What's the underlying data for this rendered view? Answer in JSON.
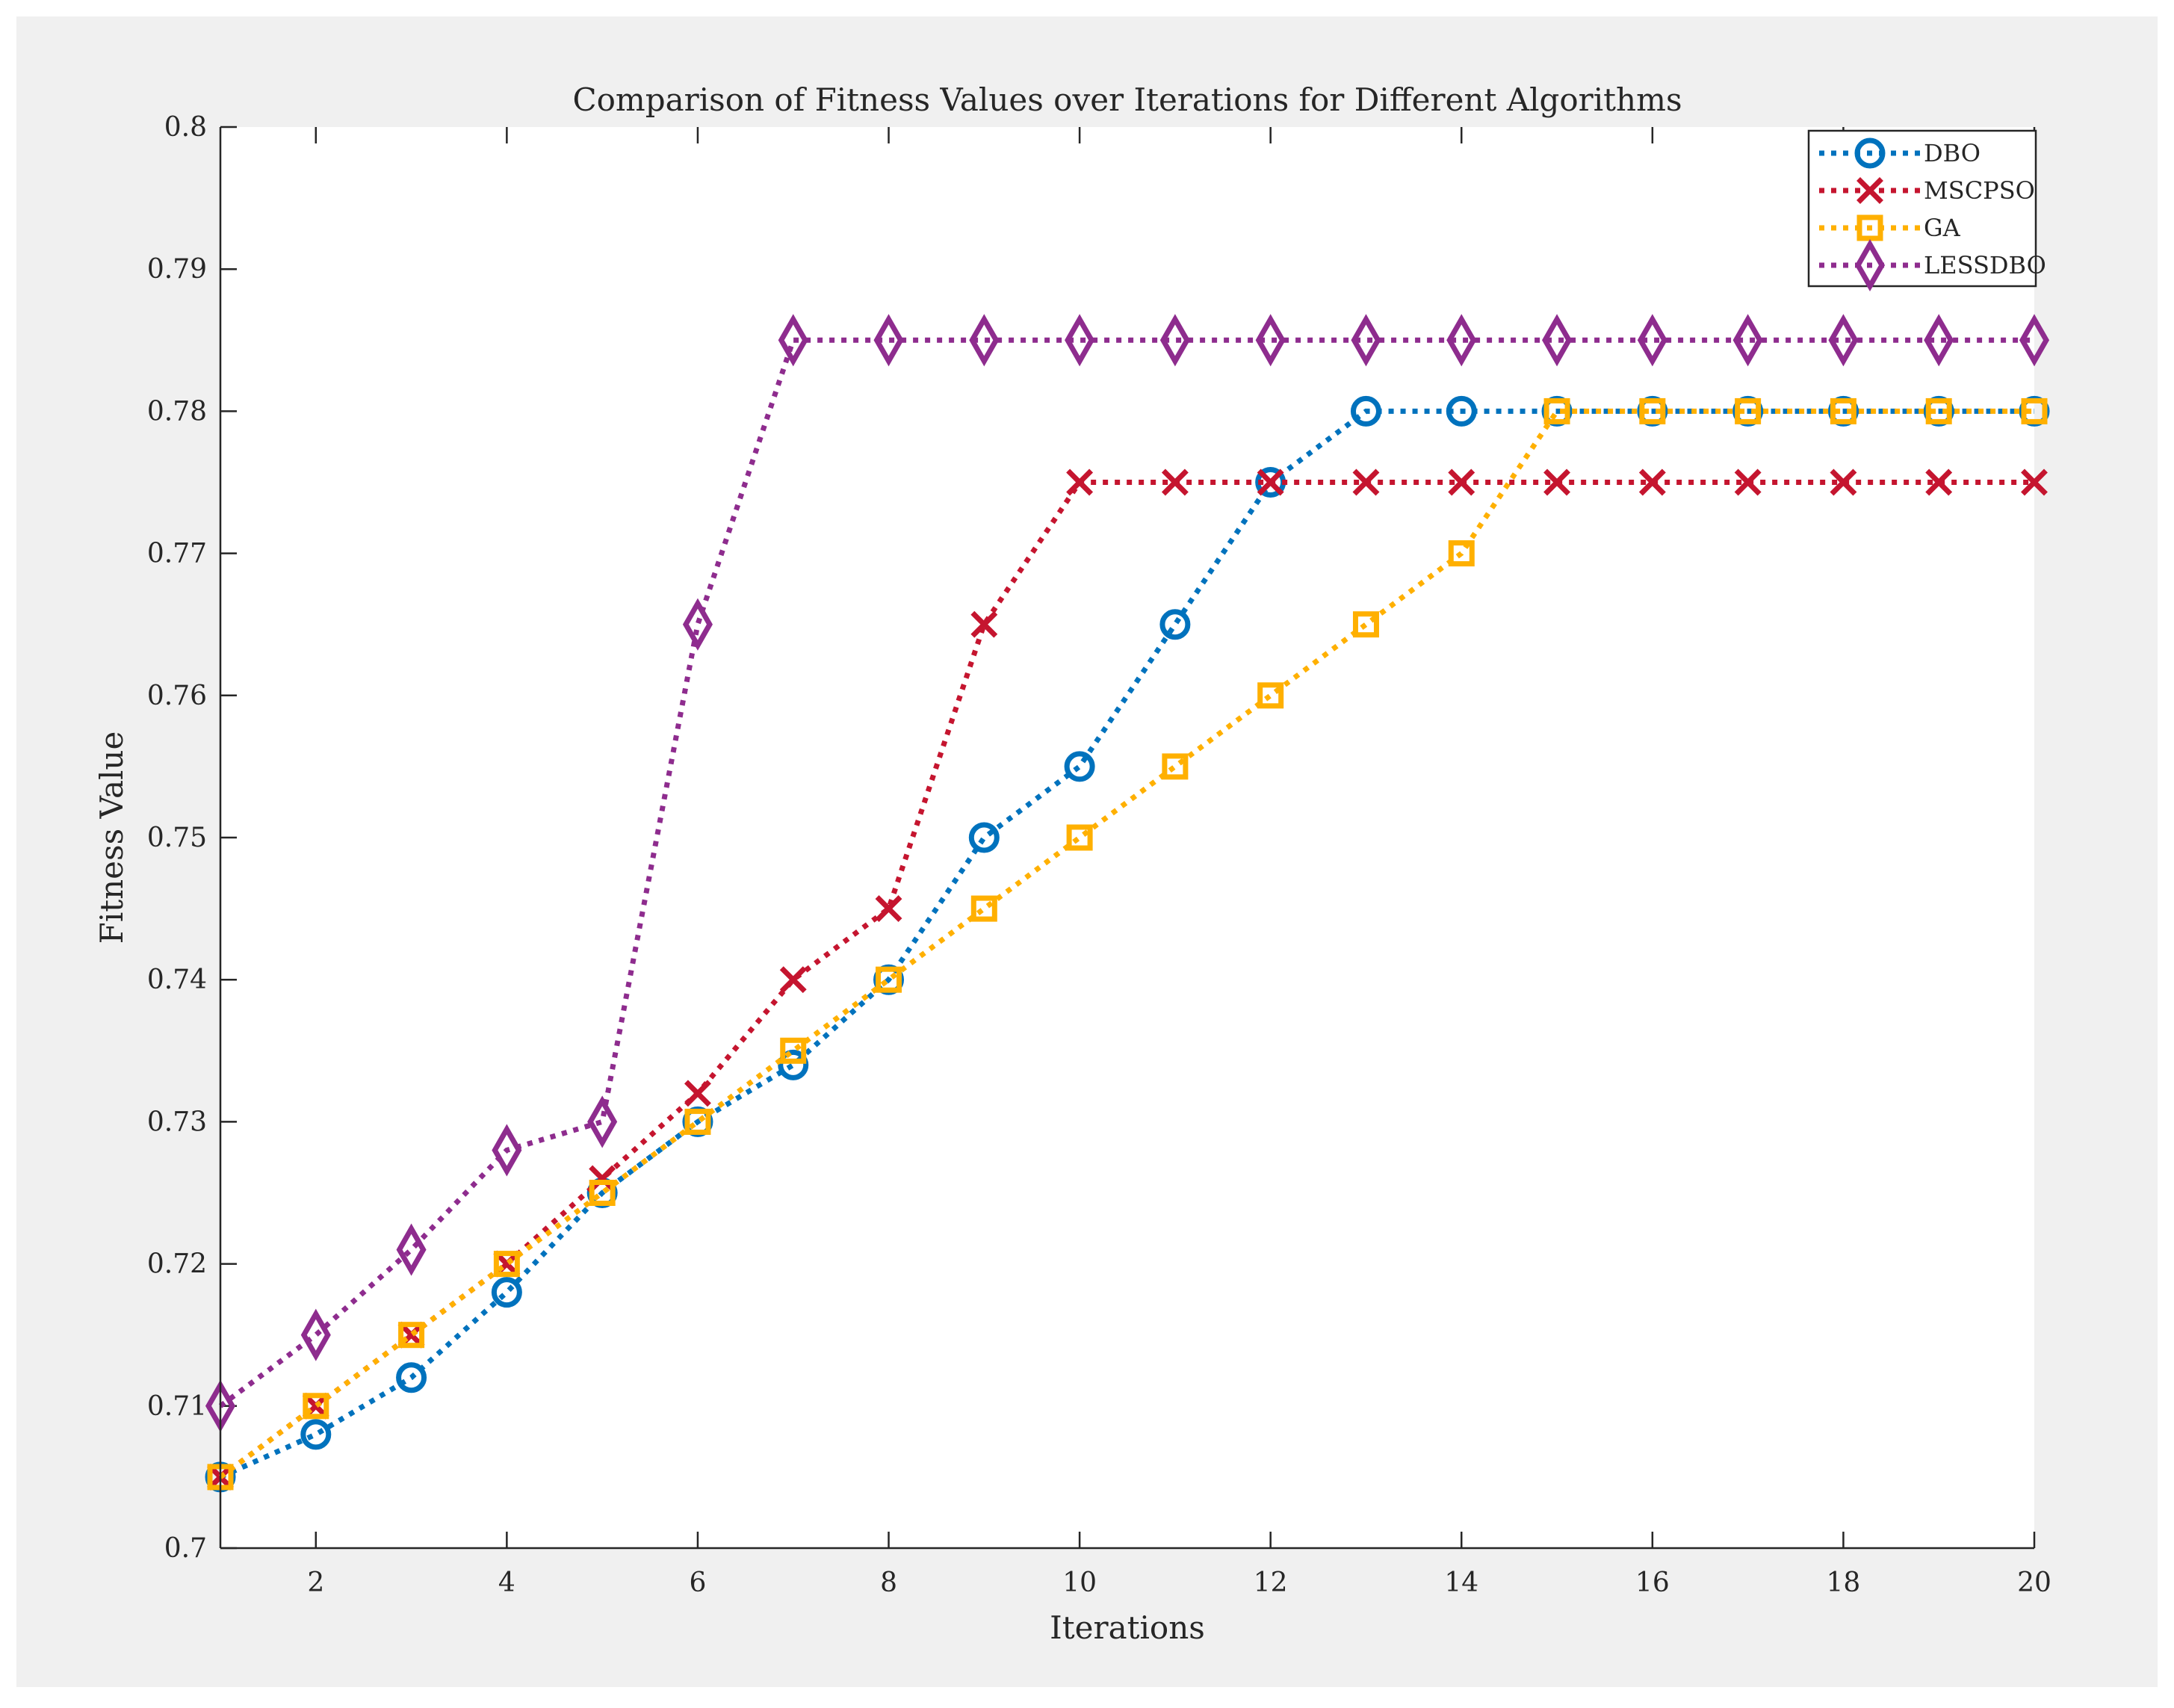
{
  "chart_data": {
    "type": "line",
    "title": "Comparison of Fitness Values over Iterations for Different Algorithms",
    "xlabel": "Iterations",
    "ylabel": "Fitness Value",
    "xlim": [
      1,
      20
    ],
    "ylim": [
      0.7,
      0.8
    ],
    "xticks": [
      2,
      4,
      6,
      8,
      10,
      12,
      14,
      16,
      18,
      20
    ],
    "xtick_labels": [
      "2",
      "4",
      "6",
      "8",
      "10",
      "12",
      "14",
      "16",
      "18",
      "20"
    ],
    "yticks": [
      0.7,
      0.71,
      0.72,
      0.73,
      0.74,
      0.75,
      0.76,
      0.77,
      0.78,
      0.79,
      0.8
    ],
    "ytick_labels": [
      "0.7",
      "0.71",
      "0.72",
      "0.73",
      "0.74",
      "0.75",
      "0.76",
      "0.77",
      "0.78",
      "0.79",
      "0.8"
    ],
    "grid": false,
    "legend_position": "top-right",
    "x": [
      1,
      2,
      3,
      4,
      5,
      6,
      7,
      8,
      9,
      10,
      11,
      12,
      13,
      14,
      15,
      16,
      17,
      18,
      19,
      20
    ],
    "series": [
      {
        "name": "DBO",
        "color": "#0072BD",
        "marker": "circle",
        "values": [
          0.705,
          0.708,
          0.712,
          0.718,
          0.725,
          0.73,
          0.734,
          0.74,
          0.75,
          0.755,
          0.765,
          0.775,
          0.78,
          0.78,
          0.78,
          0.78,
          0.78,
          0.78,
          0.78,
          0.78
        ]
      },
      {
        "name": "MSCPSO",
        "color": "#C5152F",
        "marker": "x",
        "values": [
          0.705,
          0.71,
          0.715,
          0.72,
          0.726,
          0.732,
          0.74,
          0.745,
          0.765,
          0.775,
          0.775,
          0.775,
          0.775,
          0.775,
          0.775,
          0.775,
          0.775,
          0.775,
          0.775,
          0.775
        ]
      },
      {
        "name": "GA",
        "color": "#FFB000",
        "marker": "square",
        "values": [
          0.705,
          0.71,
          0.715,
          0.72,
          0.725,
          0.73,
          0.735,
          0.74,
          0.745,
          0.75,
          0.755,
          0.76,
          0.765,
          0.77,
          0.78,
          0.78,
          0.78,
          0.78,
          0.78,
          0.78
        ]
      },
      {
        "name": "LESSDBO",
        "color": "#8E2C8E",
        "marker": "diamond",
        "values": [
          0.71,
          0.715,
          0.721,
          0.728,
          0.73,
          0.765,
          0.785,
          0.785,
          0.785,
          0.785,
          0.785,
          0.785,
          0.785,
          0.785,
          0.785,
          0.785,
          0.785,
          0.785,
          0.785,
          0.785
        ]
      }
    ]
  }
}
